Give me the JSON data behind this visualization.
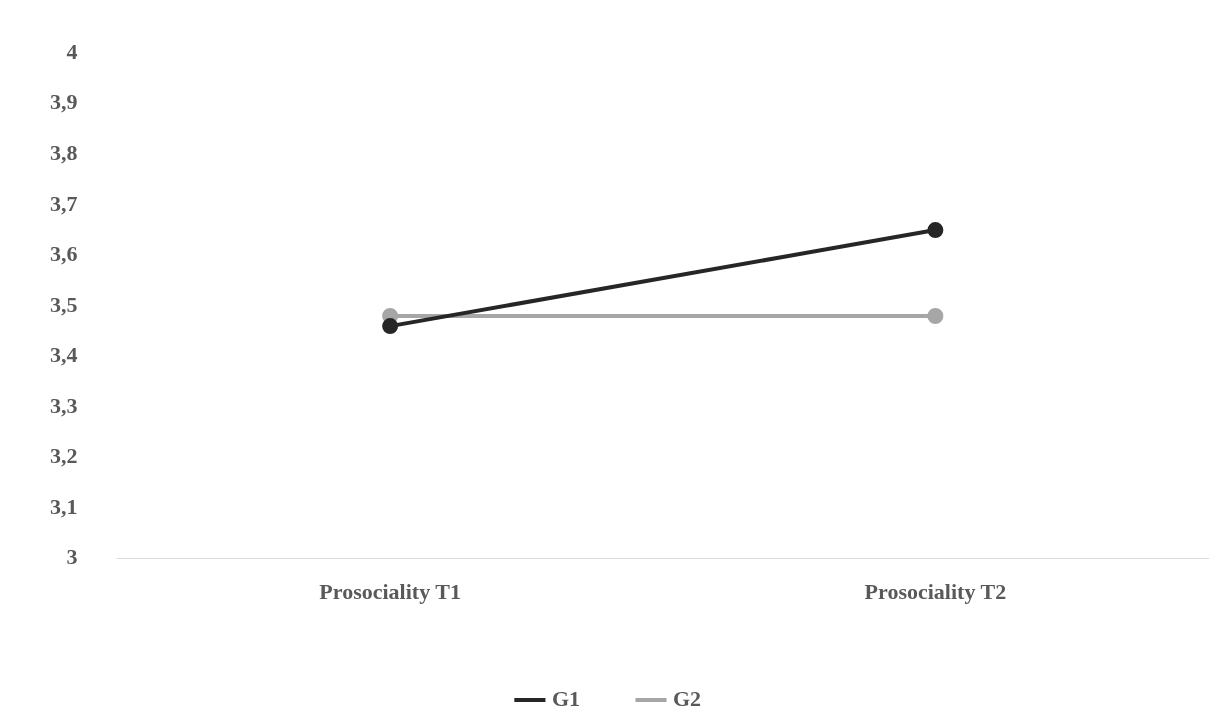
{
  "chart_data": {
    "type": "line",
    "categories": [
      "Prosociality T1",
      "Prosociality T2"
    ],
    "series": [
      {
        "name": "G1",
        "color": "#262626",
        "values": [
          3.46,
          3.65
        ]
      },
      {
        "name": "G2",
        "color": "#a6a6a6",
        "values": [
          3.48,
          3.48
        ]
      }
    ],
    "ylim": [
      3,
      4
    ],
    "yticks": [
      {
        "value": 3,
        "label": "3"
      },
      {
        "value": 3.1,
        "label": "3,1"
      },
      {
        "value": 3.2,
        "label": "3,2"
      },
      {
        "value": 3.3,
        "label": "3,3"
      },
      {
        "value": 3.4,
        "label": "3,4"
      },
      {
        "value": 3.5,
        "label": "3,5"
      },
      {
        "value": 3.6,
        "label": "3,6"
      },
      {
        "value": 3.7,
        "label": "3,7"
      },
      {
        "value": 3.8,
        "label": "3,8"
      },
      {
        "value": 3.9,
        "label": "3,9"
      },
      {
        "value": 4,
        "label": "4"
      }
    ],
    "grid": false,
    "legend": "bottom",
    "marker": "circle",
    "line_style": "solid"
  }
}
